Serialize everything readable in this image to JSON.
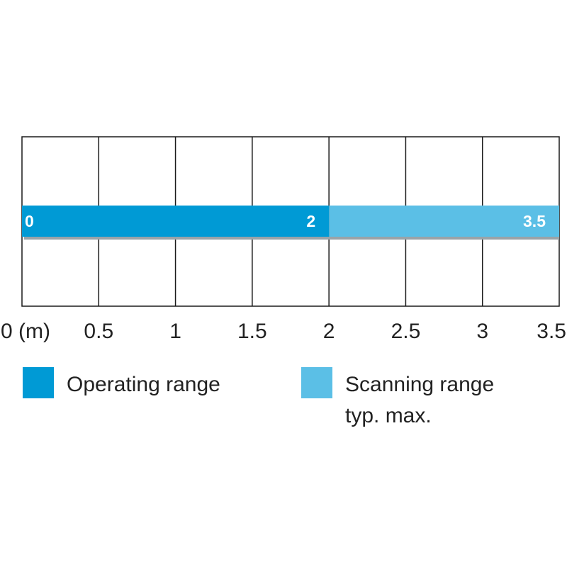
{
  "chart_data": {
    "type": "bar",
    "orientation": "horizontal-range",
    "x_ticks": [
      "0 (m)",
      "0.5",
      "1",
      "1.5",
      "2",
      "2.5",
      "3",
      "3.5"
    ],
    "xlim": [
      0,
      3.5
    ],
    "grid": true,
    "segments": [
      {
        "name": "Operating range",
        "start": 0,
        "end": 2,
        "start_label": "0",
        "end_label": "2",
        "color": "#009ad5"
      },
      {
        "name": "Scanning range typ. max.",
        "start": 2,
        "end": 3.5,
        "start_label": "",
        "end_label": "3.5",
        "color": "#5bbfe6"
      }
    ],
    "legend": {
      "placement": "bottom",
      "items": [
        {
          "lines": [
            "Operating range"
          ],
          "color": "#009ad5"
        },
        {
          "lines": [
            "Scanning range",
            "typ. max."
          ],
          "color": "#5bbfe6"
        }
      ]
    }
  }
}
